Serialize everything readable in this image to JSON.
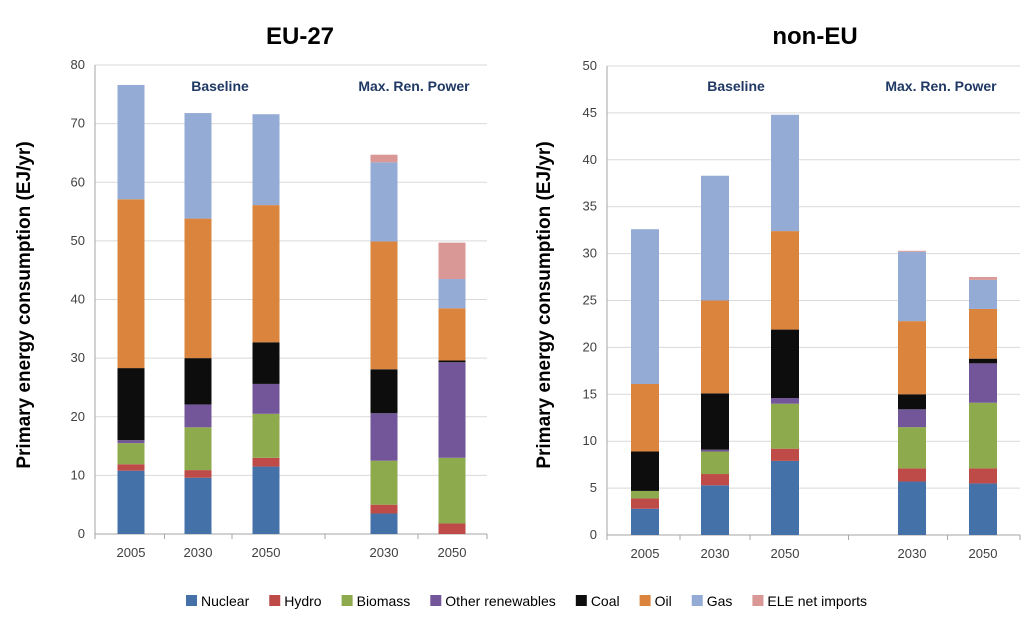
{
  "chart_data": [
    {
      "type": "bar",
      "stacked": true,
      "title": "EU-27",
      "ylabel": "Primary energy consumption (EJ/yr)",
      "ylim": [
        0,
        80
      ],
      "yticks": [
        0,
        10,
        20,
        30,
        40,
        50,
        60,
        70,
        80
      ],
      "grid": true,
      "scenario_labels": [
        "Baseline",
        "Max. Ren. Power"
      ],
      "categories": [
        "2005",
        "2030",
        "2050",
        "2030",
        "2050"
      ],
      "series": [
        {
          "name": "Nuclear",
          "values": [
            10.8,
            9.6,
            11.5,
            3.5,
            0
          ]
        },
        {
          "name": "Hydro",
          "values": [
            1.1,
            1.3,
            1.5,
            1.5,
            1.8
          ]
        },
        {
          "name": "Biomass",
          "values": [
            3.6,
            7.3,
            7.5,
            7.5,
            11.2
          ]
        },
        {
          "name": "Other renewables",
          "values": [
            0.5,
            3.9,
            5.1,
            8.1,
            16.3
          ]
        },
        {
          "name": "Coal",
          "values": [
            12.3,
            7.9,
            7.1,
            7.5,
            0.3
          ]
        },
        {
          "name": "Oil",
          "values": [
            28.8,
            23.8,
            23.4,
            21.8,
            8.9
          ]
        },
        {
          "name": "Gas",
          "values": [
            19.5,
            18.0,
            15.5,
            13.5,
            5.0
          ]
        },
        {
          "name": "ELE net imports",
          "values": [
            0,
            0,
            0,
            1.3,
            6.2
          ]
        }
      ]
    },
    {
      "type": "bar",
      "stacked": true,
      "title": "non-EU",
      "ylabel": "Primary energy consumption (EJ/yr)",
      "ylim": [
        0,
        50
      ],
      "yticks": [
        0,
        5,
        10,
        15,
        20,
        25,
        30,
        35,
        40,
        45,
        50
      ],
      "grid": true,
      "scenario_labels": [
        "Baseline",
        "Max. Ren. Power"
      ],
      "categories": [
        "2005",
        "2030",
        "2050",
        "2030",
        "2050"
      ],
      "series": [
        {
          "name": "Nuclear",
          "values": [
            2.8,
            5.3,
            7.9,
            5.7,
            5.5
          ]
        },
        {
          "name": "Hydro",
          "values": [
            1.1,
            1.2,
            1.3,
            1.4,
            1.6
          ]
        },
        {
          "name": "Biomass",
          "values": [
            0.8,
            2.4,
            4.8,
            4.4,
            7.0
          ]
        },
        {
          "name": "Other renewables",
          "values": [
            0.0,
            0.2,
            0.6,
            1.9,
            4.2
          ]
        },
        {
          "name": "Coal",
          "values": [
            4.2,
            6.0,
            7.3,
            1.6,
            0.5
          ]
        },
        {
          "name": "Oil",
          "values": [
            7.2,
            9.9,
            10.5,
            7.8,
            5.3
          ]
        },
        {
          "name": "Gas",
          "values": [
            16.5,
            13.3,
            12.4,
            7.4,
            3.1
          ]
        },
        {
          "name": "ELE net imports",
          "values": [
            0,
            0,
            0,
            0.1,
            0.3
          ]
        }
      ]
    }
  ],
  "legend": [
    {
      "name": "Nuclear",
      "color": "#4472A8"
    },
    {
      "name": "Hydro",
      "color": "#BE4B48"
    },
    {
      "name": "Biomass",
      "color": "#8DAA4D"
    },
    {
      "name": "Other renewables",
      "color": "#735699"
    },
    {
      "name": "Coal",
      "color": "#0D0D0D"
    },
    {
      "name": "Oil",
      "color": "#DB843D"
    },
    {
      "name": "Gas",
      "color": "#94ABD6"
    },
    {
      "name": "ELE net imports",
      "color": "#D99795"
    }
  ]
}
